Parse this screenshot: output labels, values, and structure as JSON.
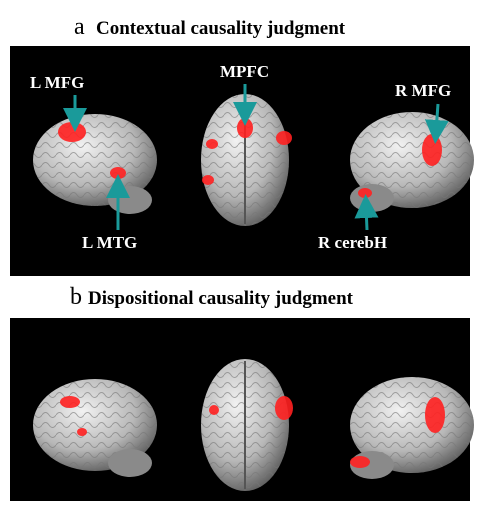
{
  "panels": [
    {
      "letter": "a",
      "title": "Contextual causality judgment",
      "labels": [
        "L MFG",
        "MPFC",
        "R MFG",
        "L MTG",
        "R cerebH"
      ]
    },
    {
      "letter": "b",
      "title": "Dispositional causality judgment"
    }
  ]
}
